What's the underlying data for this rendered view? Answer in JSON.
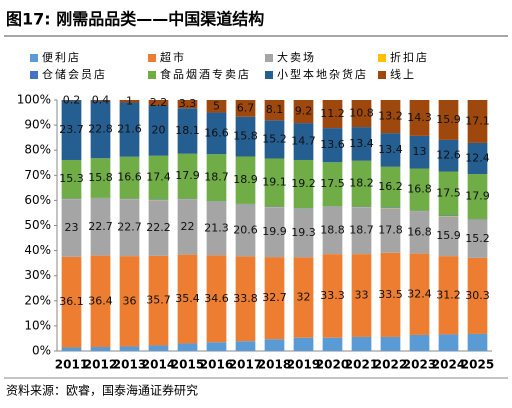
{
  "chart_data": {
    "type": "stacked_bar",
    "title": "图17:  刚需品品类——中国渠道结构",
    "source": "资料来源：欧睿，国泰海通证券研究",
    "categories": [
      "2011",
      "2012",
      "2013",
      "2014",
      "2015",
      "2016",
      "2017",
      "2018",
      "2019",
      "2020",
      "2021",
      "2022",
      "2023",
      "2024",
      "2025"
    ],
    "ylim": [
      0,
      100
    ],
    "yticks": [
      {
        "value": 0,
        "label": "0%"
      },
      {
        "value": 10,
        "label": "10%"
      },
      {
        "value": 20,
        "label": "20%"
      },
      {
        "value": 30,
        "label": "30%"
      },
      {
        "value": 40,
        "label": "40%"
      },
      {
        "value": 50,
        "label": "50%"
      },
      {
        "value": 60,
        "label": "60%"
      },
      {
        "value": 70,
        "label": "70%"
      },
      {
        "value": 80,
        "label": "80%"
      },
      {
        "value": 90,
        "label": "90%"
      },
      {
        "value": 100,
        "label": "100%"
      }
    ],
    "series": [
      {
        "name": "便利店",
        "color": "#5b9bd5",
        "show_labels": false,
        "values": [
          1.4,
          1.6,
          1.8,
          2.2,
          3.0,
          3.5,
          3.9,
          4.7,
          5.3,
          5.3,
          5.6,
          5.6,
          6.4,
          6.6,
          6.8
        ]
      },
      {
        "name": "超市",
        "color": "#ed7d31",
        "show_labels": true,
        "values": [
          36.1,
          36.4,
          36,
          35.7,
          35.4,
          34.6,
          33.8,
          32.7,
          32,
          33.3,
          33,
          33.5,
          32.4,
          31.2,
          30.3
        ]
      },
      {
        "name": "大卖场",
        "color": "#a5a5a5",
        "show_labels": true,
        "values": [
          23,
          22.7,
          22.7,
          22.2,
          22,
          21.3,
          20.6,
          19.9,
          19.3,
          18.8,
          18.7,
          17.8,
          16.8,
          15.9,
          15.2
        ]
      },
      {
        "name": "折扣店",
        "color": "#ffc000",
        "show_labels": false,
        "values": [
          0.1,
          0.1,
          0.1,
          0.1,
          0.1,
          0.1,
          0.1,
          0.1,
          0.1,
          0.1,
          0.1,
          0.1,
          0.1,
          0.1,
          0.1
        ]
      },
      {
        "name": "仓储会员店",
        "color": "#4472c4",
        "show_labels": false,
        "values": [
          0.2,
          0.2,
          0.2,
          0.2,
          0.2,
          0.2,
          0.2,
          0.2,
          0.2,
          0.2,
          0.2,
          0.2,
          0.2,
          0.2,
          0.2
        ]
      },
      {
        "name": "食品烟酒专卖店",
        "color": "#70ad47",
        "show_labels": true,
        "values": [
          15.3,
          15.8,
          16.6,
          17.4,
          17.9,
          18.7,
          18.9,
          19.1,
          19.2,
          17.5,
          18.2,
          16.2,
          16.8,
          17.5,
          17.9
        ]
      },
      {
        "name": "小型本地杂货店",
        "color": "#255e91",
        "show_labels": true,
        "values": [
          23.7,
          22.8,
          21.6,
          20,
          18.1,
          16.6,
          15.8,
          15.2,
          14.7,
          13.6,
          13.4,
          13.4,
          13,
          12.6,
          12.4
        ]
      },
      {
        "name": "线上",
        "color": "#9e480e",
        "show_labels": true,
        "values": [
          0.2,
          0.4,
          1,
          2.2,
          3.3,
          5,
          6.7,
          8.1,
          9.2,
          11.2,
          10.8,
          13.2,
          14.3,
          15.9,
          17.1
        ]
      }
    ]
  }
}
